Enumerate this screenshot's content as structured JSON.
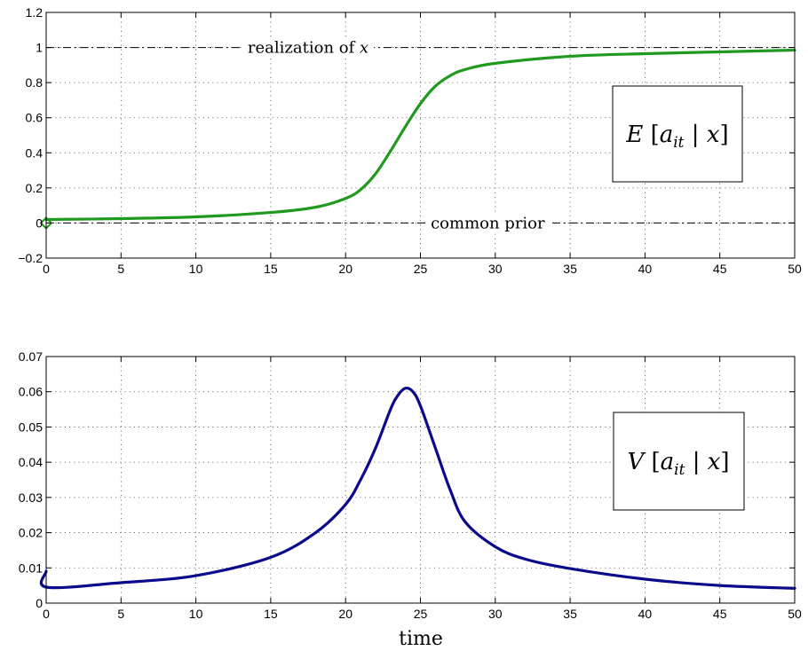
{
  "chart_data": [
    {
      "type": "line",
      "xlim": [
        0,
        50
      ],
      "ylim": [
        -0.2,
        1.2
      ],
      "x_ticks": [
        0,
        5,
        10,
        15,
        20,
        25,
        30,
        35,
        40,
        45,
        50
      ],
      "y_ticks": [
        -0.2,
        0,
        0.2,
        0.4,
        0.6,
        0.8,
        1,
        1.2
      ],
      "y_tick_labels": [
        "−0.2",
        "0",
        "0.2",
        "0.4",
        "0.6",
        "0.8",
        "1",
        "1.2"
      ],
      "grid": true,
      "xlabel": "",
      "ylabel": "",
      "series": [
        {
          "color": "#1f9a1f",
          "x": [
            0,
            5,
            10,
            15,
            18,
            20,
            21,
            22,
            23,
            24,
            25,
            26,
            27,
            28,
            30,
            35,
            40,
            45,
            50
          ],
          "y": [
            0.02,
            0.025,
            0.035,
            0.06,
            0.09,
            0.14,
            0.19,
            0.28,
            0.41,
            0.55,
            0.68,
            0.78,
            0.84,
            0.875,
            0.91,
            0.95,
            0.965,
            0.975,
            0.985
          ]
        }
      ],
      "start_marker": {
        "x": 0,
        "y": 0,
        "shape": "diamond",
        "color": "#1f9a1f"
      },
      "reference_lines": [
        {
          "y": 1,
          "label": "realization of x",
          "label_x": 17.5
        },
        {
          "y": 0,
          "label": "common prior",
          "label_x": 29.5
        }
      ],
      "annotation": "E [a_it | x]"
    },
    {
      "type": "line",
      "xlim": [
        0,
        50
      ],
      "ylim": [
        0,
        0.07
      ],
      "x_ticks": [
        0,
        5,
        10,
        15,
        20,
        25,
        30,
        35,
        40,
        45,
        50
      ],
      "y_ticks": [
        0,
        0.01,
        0.02,
        0.03,
        0.04,
        0.05,
        0.06,
        0.07
      ],
      "y_tick_labels": [
        "0",
        "0.01",
        "0.02",
        "0.03",
        "0.04",
        "0.05",
        "0.06",
        "0.07"
      ],
      "grid": true,
      "xlabel": "time",
      "ylabel": "",
      "series": [
        {
          "color": "#0a0a8c",
          "x": [
            0,
            0.05,
            5,
            10,
            15,
            18,
            20,
            21,
            22,
            23,
            23.5,
            24,
            24.5,
            25,
            26,
            27,
            28,
            30,
            32,
            35,
            40,
            45,
            50
          ],
          "y": [
            0.009,
            0.0045,
            0.0058,
            0.0078,
            0.013,
            0.02,
            0.028,
            0.035,
            0.044,
            0.055,
            0.059,
            0.061,
            0.06,
            0.056,
            0.044,
            0.032,
            0.023,
            0.016,
            0.0125,
            0.0098,
            0.0068,
            0.005,
            0.0042
          ]
        }
      ],
      "annotation": "V [a_it | x]"
    }
  ]
}
